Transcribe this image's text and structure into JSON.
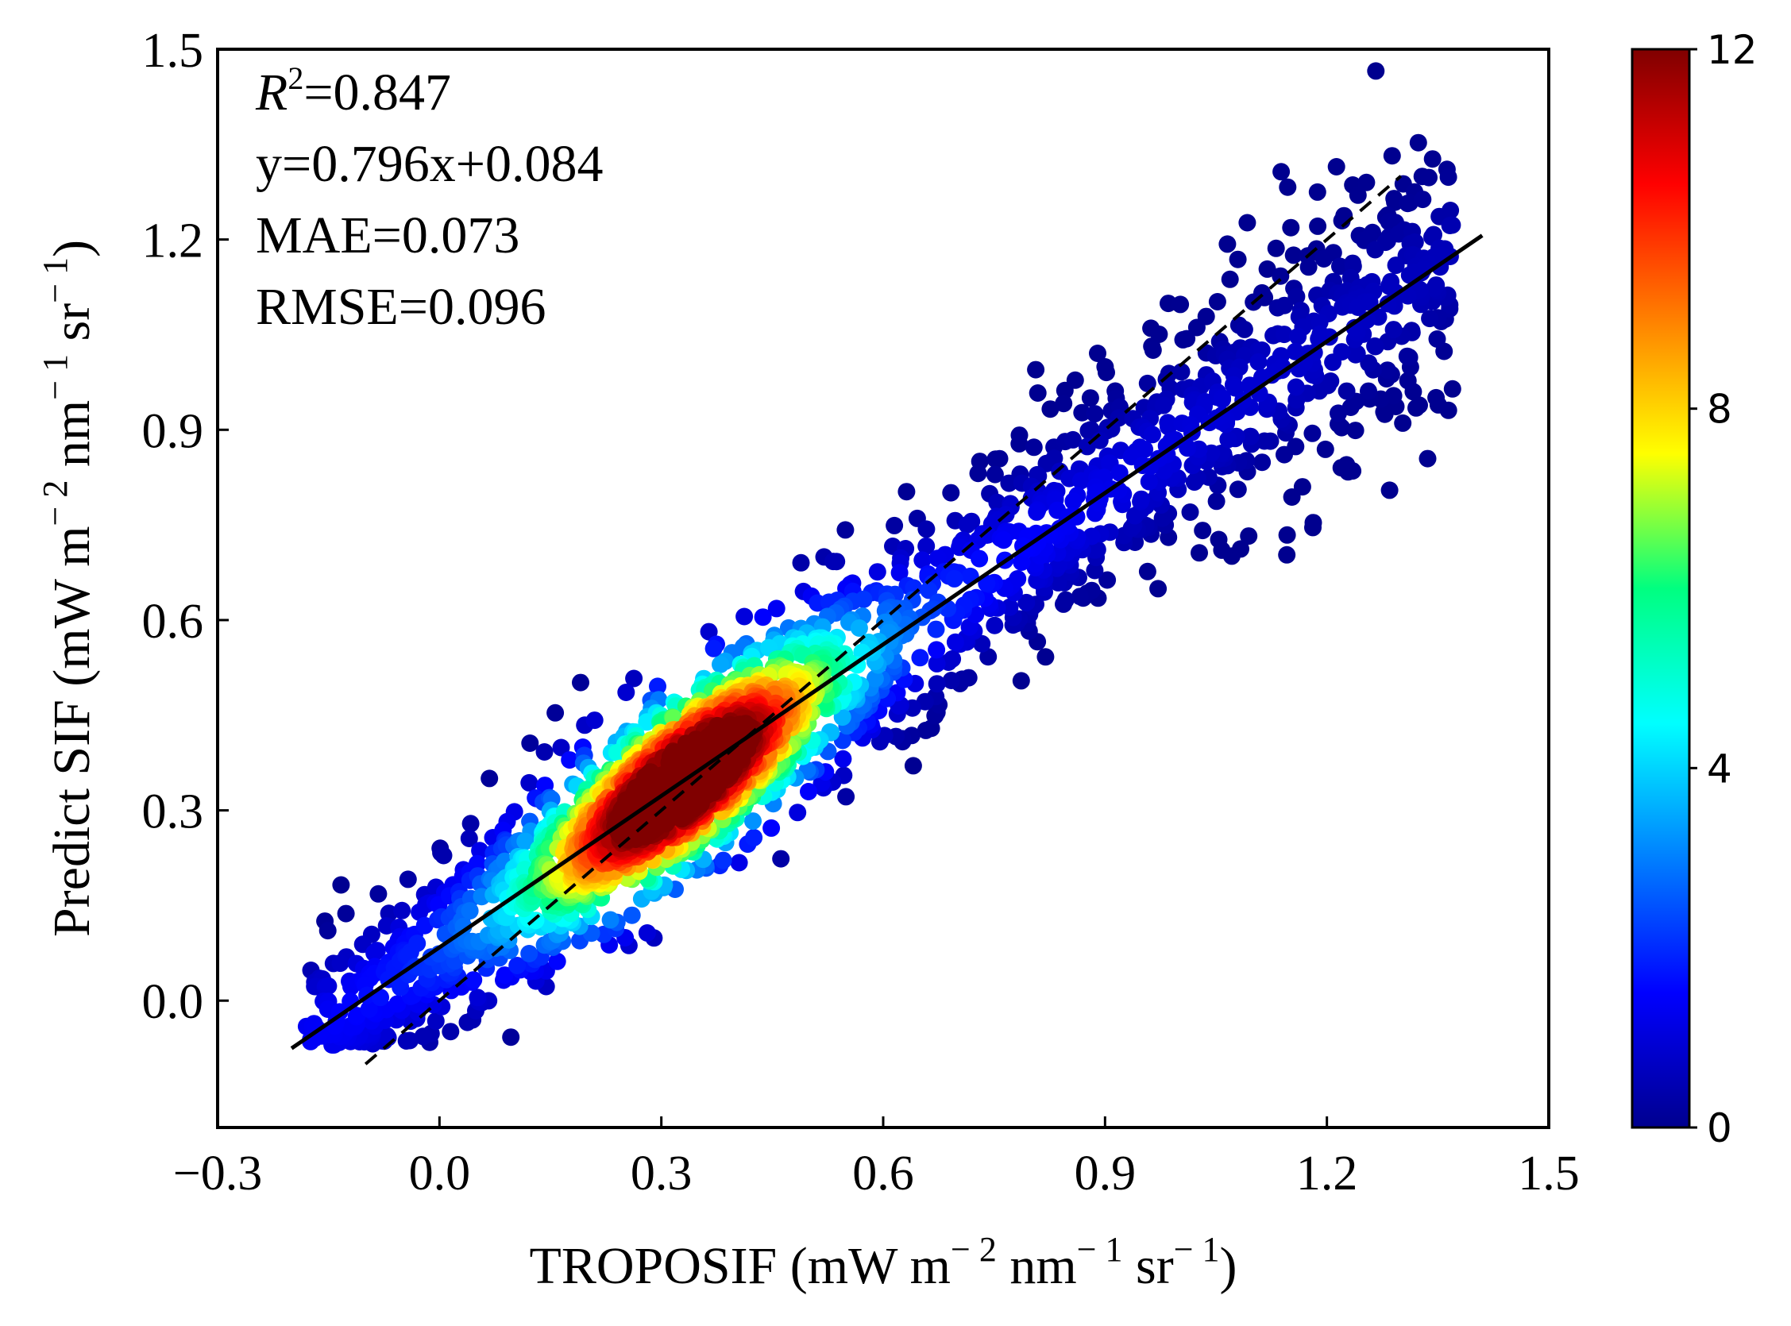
{
  "chart_data": {
    "type": "scatter",
    "subtype": "density-scatter",
    "xlabel": {
      "main": "TROPOSIF (mW m",
      "exp1": "− 2",
      "mid": " nm",
      "exp2": "− 1",
      "mid2": " sr",
      "exp3": "− 1",
      "end": ")"
    },
    "ylabel": {
      "main": "Predict SIF (mW m",
      "exp1": "− 2",
      "mid": " nm",
      "exp2": "− 1",
      "mid2": " sr",
      "exp3": "− 1",
      "end": ")"
    },
    "xlim": [
      -0.3,
      1.5
    ],
    "ylim": [
      -0.2,
      1.5
    ],
    "xticks": [
      -0.3,
      0.0,
      0.3,
      0.6,
      0.9,
      1.2,
      1.5
    ],
    "xtick_labels": [
      "−0.3",
      "0.0",
      "0.3",
      "0.6",
      "0.9",
      "1.2",
      "1.5"
    ],
    "yticks": [
      0.0,
      0.3,
      0.6,
      0.9,
      1.2,
      1.5
    ],
    "ytick_labels": [
      "0.0",
      "0.3",
      "0.6",
      "0.9",
      "1.2",
      "1.5"
    ],
    "annotations": {
      "r2_label": "R",
      "r2_sup": "2",
      "r2_value": "=0.847",
      "equation": "y=0.796x+0.084",
      "mae": "MAE=0.073",
      "rmse": "RMSE=0.096"
    },
    "fit_line": {
      "slope": 0.796,
      "intercept": 0.084,
      "x_range": [
        -0.2,
        1.41
      ],
      "style": "solid"
    },
    "one_to_one_line": {
      "x_range": [
        -0.1,
        1.3
      ],
      "style": "dashed"
    },
    "colorbar": {
      "min": 0,
      "max": 12,
      "ticks": [
        0,
        4,
        8,
        12
      ],
      "tick_labels": [
        "0",
        "4",
        "8",
        "12"
      ],
      "colormap": "jet"
    },
    "density_center": {
      "x": 0.33,
      "y": 0.35,
      "max_density": 12
    },
    "point_count_rendered": 2600
  },
  "colors": {
    "point_low": "#00008f",
    "fit_line": "#000000",
    "axis": "#000000",
    "background": "#ffffff"
  }
}
